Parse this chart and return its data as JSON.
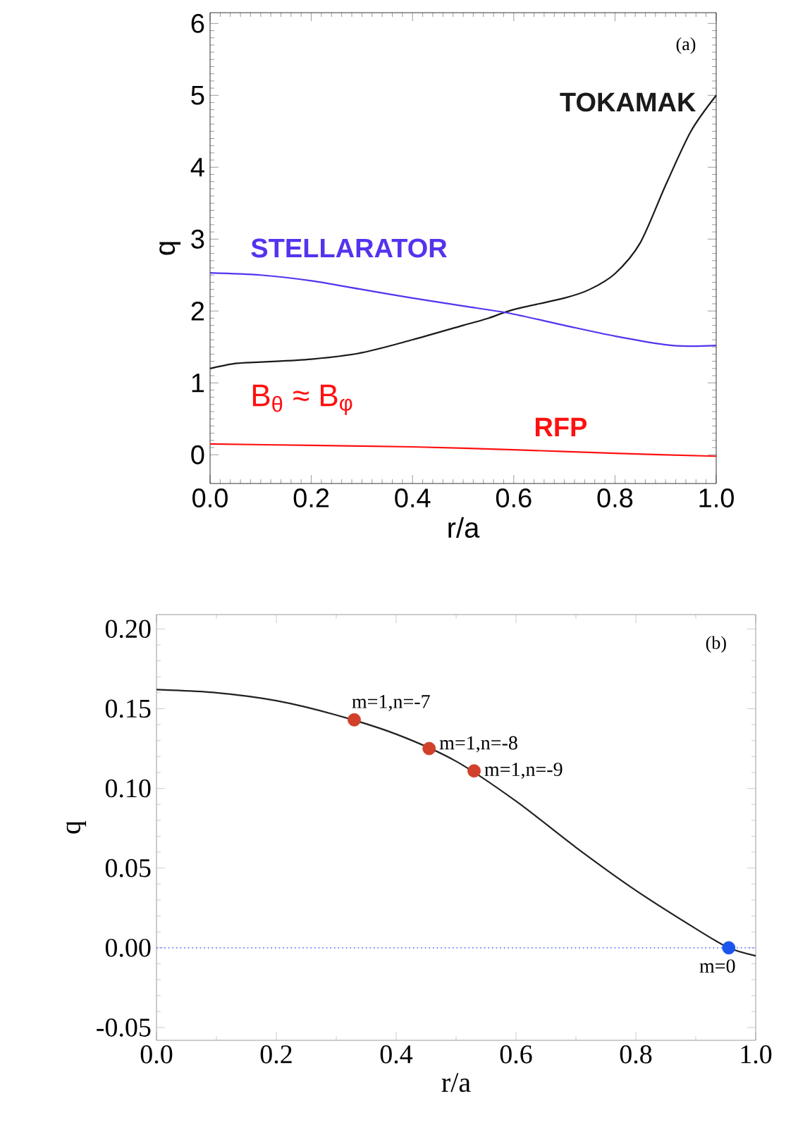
{
  "chart_data": [
    {
      "type": "line",
      "xlabel": "r/a",
      "ylabel": "q",
      "xlim": [
        0,
        1
      ],
      "ylim": [
        -0.4,
        6.15
      ],
      "xticks": [
        {
          "value": 0,
          "label": "0.0"
        },
        {
          "value": 0.2,
          "label": "0.2"
        },
        {
          "value": 0.4,
          "label": "0.4"
        },
        {
          "value": 0.6,
          "label": "0.6"
        },
        {
          "value": 0.8,
          "label": "0.8"
        },
        {
          "value": 1,
          "label": "1.0"
        }
      ],
      "yticks": [
        0,
        1,
        2,
        3,
        4,
        5,
        6
      ],
      "grid": false,
      "marker": "none",
      "line_style": "solid",
      "series": [
        {
          "name": "TOKAMAK",
          "color": "#1a1a1a",
          "x": [
            0,
            0.05,
            0.1,
            0.2,
            0.3,
            0.4,
            0.5,
            0.55,
            0.6,
            0.7,
            0.75,
            0.8,
            0.85,
            0.9,
            0.95,
            1.0
          ],
          "values": [
            1.2,
            1.27,
            1.29,
            1.33,
            1.42,
            1.6,
            1.8,
            1.9,
            2.02,
            2.18,
            2.3,
            2.52,
            2.95,
            3.75,
            4.5,
            5.0
          ]
        },
        {
          "name": "STELLARATOR",
          "color": "#5533ee",
          "x": [
            0,
            0.1,
            0.2,
            0.3,
            0.4,
            0.5,
            0.59,
            0.7,
            0.8,
            0.9,
            0.95,
            1.0
          ],
          "values": [
            2.53,
            2.5,
            2.42,
            2.3,
            2.18,
            2.07,
            1.97,
            1.8,
            1.65,
            1.53,
            1.51,
            1.52
          ]
        },
        {
          "name": "RFP",
          "color": "#ff1010",
          "x": [
            0,
            0.2,
            0.4,
            0.6,
            0.8,
            1.0
          ],
          "values": [
            0.15,
            0.13,
            0.11,
            0.07,
            0.02,
            -0.02
          ]
        }
      ],
      "annotations": [
        "(a)",
        "B$_{θ}$ ≈ B$_{φ}$"
      ]
    },
    {
      "type": "line",
      "xlabel": "r/a",
      "ylabel": "q",
      "xlim": [
        0,
        1
      ],
      "ylim": [
        -0.058,
        0.209
      ],
      "xticks": [
        {
          "value": 0,
          "label": "0.0"
        },
        {
          "value": 0.2,
          "label": "0.2"
        },
        {
          "value": 0.4,
          "label": "0.4"
        },
        {
          "value": 0.6,
          "label": "0.6"
        },
        {
          "value": 0.8,
          "label": "0.8"
        },
        {
          "value": 1,
          "label": "1.0"
        }
      ],
      "yticks": [
        {
          "value": -0.05,
          "label": "-0.05"
        },
        {
          "value": 0,
          "label": "0.00"
        },
        {
          "value": 0.05,
          "label": "0.05"
        },
        {
          "value": 0.1,
          "label": "0.10"
        },
        {
          "value": 0.15,
          "label": "0.15"
        },
        {
          "value": 0.2,
          "label": "0.20"
        }
      ],
      "grid": false,
      "line_style": "solid",
      "series": [
        {
          "color": "#222222",
          "x": [
            0,
            0.1,
            0.2,
            0.3,
            0.4,
            0.5,
            0.6,
            0.7,
            0.8,
            0.9,
            0.955,
            1.0
          ],
          "values": [
            0.162,
            0.16,
            0.155,
            0.146,
            0.134,
            0.117,
            0.092,
            0.063,
            0.036,
            0.012,
            0.0,
            -0.005
          ]
        },
        {
          "type": "scatter",
          "marker": "circle",
          "x": [
            0.33,
            0.455,
            0.53,
            0.955
          ],
          "values": [
            0.143,
            0.125,
            0.111,
            0.0
          ],
          "colors": [
            "#d0402a",
            "#d0402a",
            "#d0402a",
            "#1a55ee"
          ]
        }
      ],
      "ref_lines": [
        {
          "axis": "y",
          "value": 0,
          "color": "#3366ff",
          "line_style": "dotted"
        }
      ],
      "annotations": [
        "(b)",
        {
          "text": "m=1,n=-7",
          "x": 0.33,
          "y": 0.143
        },
        {
          "text": "m=1,n=-8",
          "x": 0.455,
          "y": 0.125
        },
        {
          "text": "m=1,n=-9",
          "x": 0.53,
          "y": 0.111
        },
        {
          "text": "m=0",
          "x": 0.955,
          "y": 0.0
        }
      ]
    }
  ]
}
